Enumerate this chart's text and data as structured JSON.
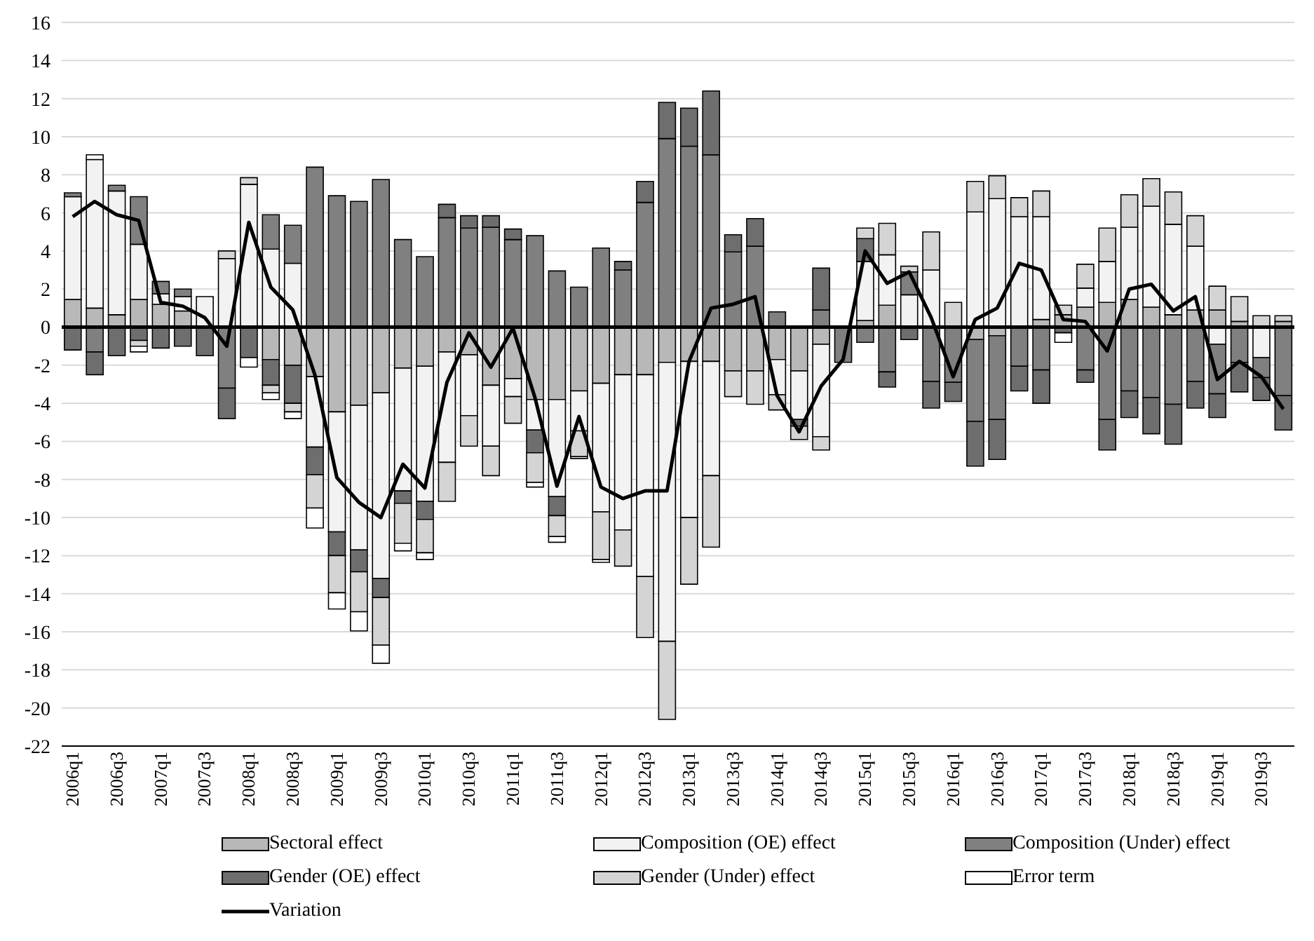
{
  "chart_data": {
    "type": "bar",
    "stacked": true,
    "categories": [
      "2006q1",
      null,
      "2006q3",
      null,
      "2007q1",
      null,
      "2007q3",
      null,
      "2008q1",
      null,
      "2008q3",
      null,
      "2009q1",
      null,
      "2009q3",
      null,
      "2010q1",
      null,
      "2010q3",
      null,
      "2011q1",
      null,
      "2011q3",
      null,
      "2012q1",
      null,
      "2012q3",
      null,
      "2013q1",
      null,
      "2013q3",
      null,
      "2014q1",
      null,
      "2014q3",
      null,
      "2015q1",
      null,
      "2015q3",
      null,
      "2016q1",
      null,
      "2016q3",
      null,
      "2017q1",
      null,
      "2017q3",
      null,
      "2018q1",
      null,
      "2018q3",
      null,
      "2019q1",
      null,
      "2019q3",
      null
    ],
    "series": [
      {
        "name": "Sectoral effect",
        "color": "#b8b8b8",
        "values": [
          1.45,
          1.0,
          0.65,
          1.45,
          1.2,
          0.85,
          null,
          null,
          null,
          -1.7,
          -2.0,
          -2.6,
          -4.45,
          -4.1,
          -3.45,
          -2.15,
          -2.05,
          -1.3,
          -1.45,
          -3.05,
          -2.7,
          -3.8,
          -3.8,
          -3.35,
          -2.95,
          -2.5,
          -2.5,
          -1.85,
          -1.8,
          -1.8,
          -2.3,
          -2.3,
          -1.7,
          -2.3,
          -0.9,
          null,
          0.35,
          1.15,
          null,
          null,
          null,
          -0.65,
          -0.45,
          null,
          0.4,
          0.65,
          1.05,
          1.3,
          1.45,
          1.05,
          0.65,
          0.9,
          0.9,
          0.3,
          null,
          0.3
        ]
      },
      {
        "name": "Composition (OE) effect",
        "color": "#f2f2f2",
        "values": [
          5.4,
          7.8,
          6.5,
          2.9,
          0.55,
          0.75,
          1.6,
          3.6,
          7.5,
          4.1,
          3.35,
          -3.7,
          -6.3,
          -7.6,
          -9.75,
          -6.45,
          -7.1,
          -5.8,
          -3.2,
          -3.2,
          -0.95,
          -1.6,
          -5.1,
          -2.1,
          -6.75,
          -8.15,
          -10.6,
          -14.65,
          -8.2,
          -6.0,
          null,
          null,
          -1.85,
          -2.55,
          -4.85,
          null,
          3.1,
          2.65,
          1.7,
          3.0,
          null,
          6.05,
          6.75,
          5.8,
          5.4,
          null,
          1.0,
          2.15,
          3.8,
          5.3,
          4.75,
          3.35,
          -0.9,
          null,
          -1.6,
          null
        ]
      },
      {
        "name": "Composition (Under) effect",
        "color": "#808080",
        "values": [
          0.2,
          -1.3,
          0.3,
          2.5,
          0.65,
          0.4,
          null,
          -3.2,
          null,
          1.8,
          2.0,
          8.4,
          6.9,
          6.6,
          7.75,
          4.6,
          3.7,
          5.75,
          5.2,
          5.25,
          4.6,
          4.8,
          2.95,
          2.1,
          4.15,
          3.0,
          6.55,
          9.9,
          9.5,
          9.05,
          3.95,
          4.25,
          0.8,
          null,
          0.9,
          -1.85,
          -0.8,
          -2.35,
          1.2,
          -2.85,
          -2.9,
          -4.3,
          -4.4,
          -2.05,
          -2.25,
          null,
          -2.25,
          -4.85,
          -3.35,
          -3.7,
          -4.05,
          -2.85,
          -2.6,
          -1.85,
          -1.05,
          -3.6
        ]
      },
      {
        "name": "Gender (OE) effect",
        "color": "#6e6e6e",
        "values": [
          -1.2,
          -1.2,
          -1.5,
          -0.7,
          -1.1,
          -1.0,
          -1.5,
          -1.6,
          -1.6,
          -1.35,
          -2.0,
          -1.45,
          -1.25,
          -1.15,
          -1.0,
          -0.65,
          -0.95,
          0.7,
          0.65,
          0.6,
          0.55,
          -1.2,
          -1.0,
          null,
          null,
          0.45,
          1.1,
          1.9,
          2.0,
          3.35,
          0.9,
          1.45,
          null,
          -0.35,
          2.2,
          null,
          1.2,
          -0.8,
          -0.65,
          -1.4,
          -1.0,
          -2.35,
          -2.1,
          -1.3,
          -1.75,
          -0.3,
          -0.65,
          -1.6,
          -1.4,
          -1.9,
          -2.1,
          -1.4,
          -1.25,
          -1.55,
          -1.2,
          -1.8
        ]
      },
      {
        "name": "Gender (Under) effect",
        "color": "#d4d4d4",
        "values": [
          null,
          null,
          null,
          -0.3,
          null,
          null,
          null,
          0.4,
          0.35,
          -0.4,
          -0.45,
          -1.75,
          -1.95,
          -2.1,
          -2.5,
          -2.1,
          -1.75,
          -2.05,
          -1.6,
          -1.55,
          -1.4,
          -1.55,
          -1.1,
          -1.35,
          -2.5,
          -1.9,
          -3.2,
          -4.1,
          -3.5,
          -3.75,
          -1.35,
          -1.75,
          -0.8,
          -0.7,
          -0.7,
          null,
          0.55,
          1.65,
          0.3,
          2.0,
          1.3,
          1.6,
          1.2,
          1.0,
          1.35,
          0.5,
          1.25,
          1.75,
          1.7,
          1.45,
          1.7,
          1.6,
          1.25,
          1.3,
          0.6,
          0.3
        ]
      },
      {
        "name": "Error term",
        "color": "#ffffff",
        "values": [
          null,
          0.25,
          null,
          -0.3,
          null,
          null,
          null,
          null,
          -0.5,
          -0.35,
          -0.35,
          -1.05,
          -0.85,
          -1.0,
          -0.95,
          -0.4,
          -0.35,
          null,
          null,
          null,
          null,
          -0.25,
          -0.3,
          -0.1,
          -0.15,
          null,
          null,
          null,
          null,
          null,
          null,
          null,
          null,
          null,
          null,
          null,
          null,
          null,
          null,
          null,
          null,
          null,
          null,
          null,
          null,
          -0.5,
          null,
          null,
          null,
          null,
          null,
          null,
          null,
          null,
          null,
          null
        ]
      },
      {
        "name": "Variation",
        "type": "line",
        "color": "#000000",
        "values": [
          5.8,
          6.6,
          5.9,
          5.6,
          1.3,
          1.1,
          0.5,
          -1.0,
          5.5,
          2.1,
          0.9,
          -2.5,
          -7.9,
          -9.2,
          -10.0,
          -7.2,
          -8.45,
          -2.9,
          -0.3,
          -2.1,
          -0.05,
          -3.7,
          -8.35,
          -4.7,
          -8.4,
          -9.0,
          -8.6,
          -8.6,
          -1.8,
          1.0,
          1.2,
          1.6,
          -3.6,
          -5.5,
          -3.1,
          -1.7,
          4.0,
          2.3,
          2.9,
          0.5,
          -2.6,
          0.4,
          1.0,
          3.35,
          3.0,
          0.4,
          0.3,
          -1.25,
          2.0,
          2.25,
          0.85,
          1.6,
          -2.75,
          -1.8,
          -2.6,
          -4.3
        ]
      }
    ],
    "ylim": [
      -22,
      16
    ],
    "yticks": [
      -22,
      -20,
      -18,
      -16,
      -14,
      -12,
      -10,
      -8,
      -6,
      -4,
      -2,
      0,
      2,
      4,
      6,
      8,
      10,
      12,
      14,
      16
    ],
    "grid": "y",
    "legend": "bottom"
  }
}
